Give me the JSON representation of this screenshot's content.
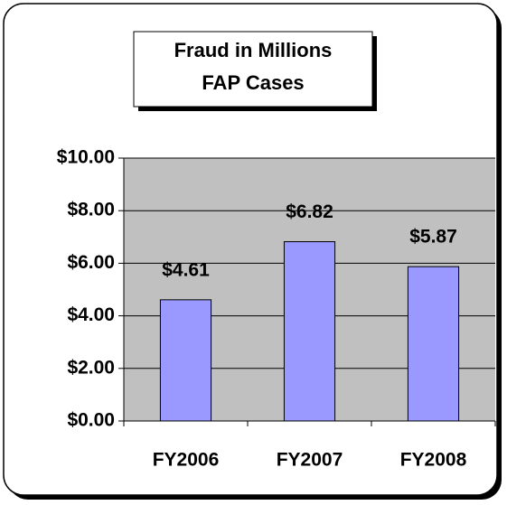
{
  "chart_data": {
    "type": "bar",
    "title": [
      "Fraud in Millions",
      "FAP Cases"
    ],
    "categories": [
      "FY2006",
      "FY2007",
      "FY2008"
    ],
    "values": [
      4.61,
      6.82,
      5.87
    ],
    "value_labels": [
      "$4.61",
      "$6.82",
      "$5.87"
    ],
    "color": "#9999ff",
    "ylim": [
      0,
      10
    ],
    "yticks": [
      {
        "value": 0,
        "label": "$0.00"
      },
      {
        "value": 2,
        "label": "$2.00"
      },
      {
        "value": 4,
        "label": "$4.00"
      },
      {
        "value": 6,
        "label": "$6.00"
      },
      {
        "value": 8,
        "label": "$8.00"
      },
      {
        "value": 10,
        "label": "$10.00"
      }
    ],
    "grid": true
  }
}
